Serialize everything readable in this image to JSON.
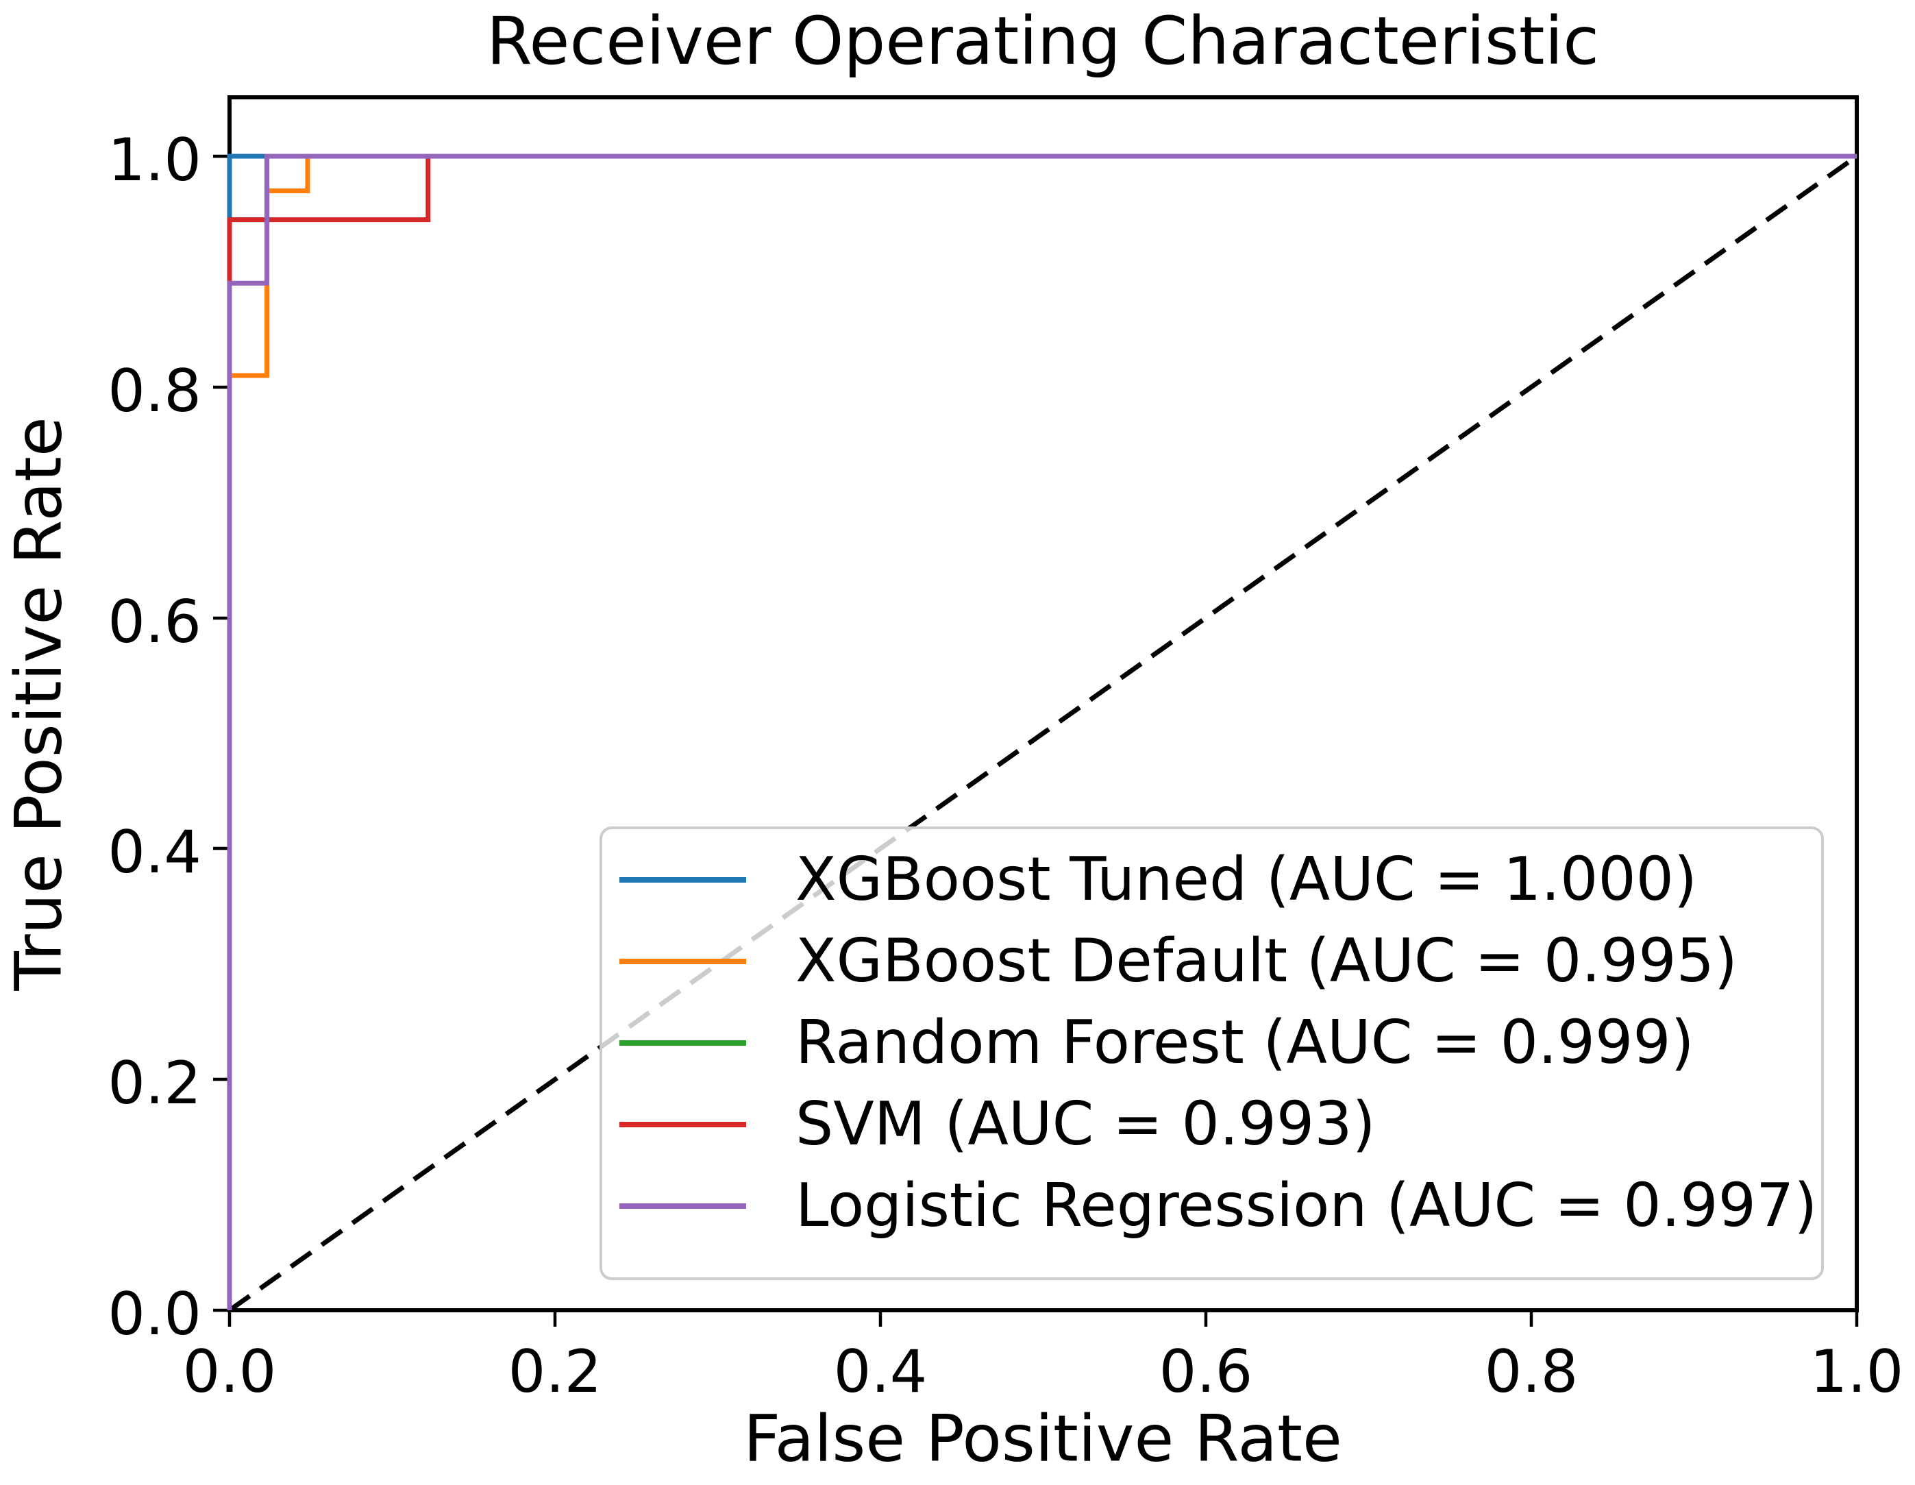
{
  "chart_data": {
    "type": "line",
    "title": "Receiver Operating Characteristic",
    "xlabel": "False Positive Rate",
    "ylabel": "True Positive Rate",
    "xlim": [
      0.0,
      1.0
    ],
    "ylim": [
      0.0,
      1.05
    ],
    "xticks": [
      "0.0",
      "0.2",
      "0.4",
      "0.6",
      "0.8",
      "1.0"
    ],
    "yticks": [
      "0.0",
      "0.2",
      "0.4",
      "0.6",
      "0.8",
      "1.0"
    ],
    "grid": false,
    "legend_position": "lower right",
    "baseline": {
      "name": "random-classifier-diagonal",
      "style": "dashed",
      "color": "#000000",
      "points": [
        [
          0,
          0
        ],
        [
          1,
          1
        ]
      ]
    },
    "series": [
      {
        "name": "XGBoost Tuned (AUC = 1.000)",
        "auc": 1.0,
        "color": "#1f77b4",
        "points": [
          [
            0,
            0
          ],
          [
            0,
            1
          ],
          [
            1,
            1
          ]
        ]
      },
      {
        "name": "XGBoost Default (AUC = 0.995)",
        "auc": 0.995,
        "color": "#ff7f0e",
        "points": [
          [
            0,
            0
          ],
          [
            0,
            0.81
          ],
          [
            0.023,
            0.81
          ],
          [
            0.023,
            0.97
          ],
          [
            0.048,
            0.97
          ],
          [
            0.048,
            1
          ],
          [
            1,
            1
          ]
        ]
      },
      {
        "name": "Random Forest (AUC = 0.999)",
        "auc": 0.999,
        "color": "#2ca02c",
        "points": [
          [
            0,
            0
          ],
          [
            0,
            0.945
          ],
          [
            0.023,
            0.945
          ],
          [
            0.023,
            1
          ],
          [
            1,
            1
          ]
        ]
      },
      {
        "name": "SVM (AUC = 0.993)",
        "auc": 0.993,
        "color": "#d62728",
        "points": [
          [
            0,
            0
          ],
          [
            0,
            0.945
          ],
          [
            0.122,
            0.945
          ],
          [
            0.122,
            1
          ],
          [
            1,
            1
          ]
        ]
      },
      {
        "name": "Logistic Regression (AUC = 0.997)",
        "auc": 0.997,
        "color": "#9467bd",
        "points": [
          [
            0,
            0
          ],
          [
            0,
            0.89
          ],
          [
            0.023,
            0.89
          ],
          [
            0.023,
            1
          ],
          [
            1,
            1
          ]
        ]
      }
    ]
  }
}
